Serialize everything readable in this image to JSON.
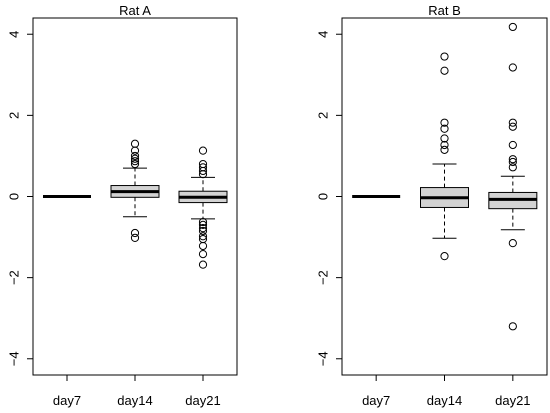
{
  "chart_data": [
    {
      "type": "box",
      "title": "Rat A",
      "xlabel": "",
      "ylabel": "",
      "ylim": [
        -4.4,
        4.4
      ],
      "yticks": [
        -4,
        -2,
        0,
        2,
        4
      ],
      "ytick_labels": [
        "−4",
        "−2",
        "0",
        "2",
        "4"
      ],
      "categories": [
        "day7",
        "day14",
        "day21"
      ],
      "grid": false,
      "boxes": [
        {
          "category": "day7",
          "whisker_low": 0,
          "q1": 0,
          "median": 0,
          "q3": 0,
          "whisker_high": 0,
          "outliers": []
        },
        {
          "category": "day14",
          "whisker_low": -0.5,
          "q1": -0.02,
          "median": 0.12,
          "q3": 0.27,
          "whisker_high": 0.7,
          "outliers": [
            -1.02,
            -0.9,
            0.8,
            0.87,
            0.93,
            1.0,
            1.13,
            1.3
          ]
        },
        {
          "category": "day21",
          "whisker_low": -0.55,
          "q1": -0.15,
          "median": -0.02,
          "q3": 0.13,
          "whisker_high": 0.47,
          "outliers": [
            -1.68,
            -1.42,
            -1.22,
            -1.05,
            -0.98,
            -0.85,
            -0.78,
            -0.7,
            -0.63,
            0.55,
            0.63,
            0.72,
            0.8,
            1.13
          ]
        }
      ],
      "box_fill": "#d3d3d3"
    },
    {
      "type": "box",
      "title": "Rat B",
      "xlabel": "",
      "ylabel": "",
      "ylim": [
        -4.4,
        4.4
      ],
      "yticks": [
        -4,
        -2,
        0,
        2,
        4
      ],
      "ytick_labels": [
        "−4",
        "−2",
        "0",
        "2",
        "4"
      ],
      "categories": [
        "day7",
        "day14",
        "day21"
      ],
      "grid": false,
      "boxes": [
        {
          "category": "day7",
          "whisker_low": 0,
          "q1": 0,
          "median": 0,
          "q3": 0,
          "whisker_high": 0,
          "outliers": []
        },
        {
          "category": "day14",
          "whisker_low": -1.03,
          "q1": -0.27,
          "median": -0.03,
          "q3": 0.22,
          "whisker_high": 0.8,
          "outliers": [
            -1.47,
            1.15,
            1.27,
            1.43,
            1.67,
            1.82,
            3.1,
            3.45
          ]
        },
        {
          "category": "day21",
          "whisker_low": -0.82,
          "q1": -0.3,
          "median": -0.07,
          "q3": 0.1,
          "whisker_high": 0.5,
          "outliers": [
            -3.2,
            -1.15,
            0.72,
            0.85,
            0.92,
            1.27,
            1.72,
            1.82,
            3.18,
            4.18
          ]
        }
      ],
      "box_fill": "#d3d3d3"
    }
  ]
}
